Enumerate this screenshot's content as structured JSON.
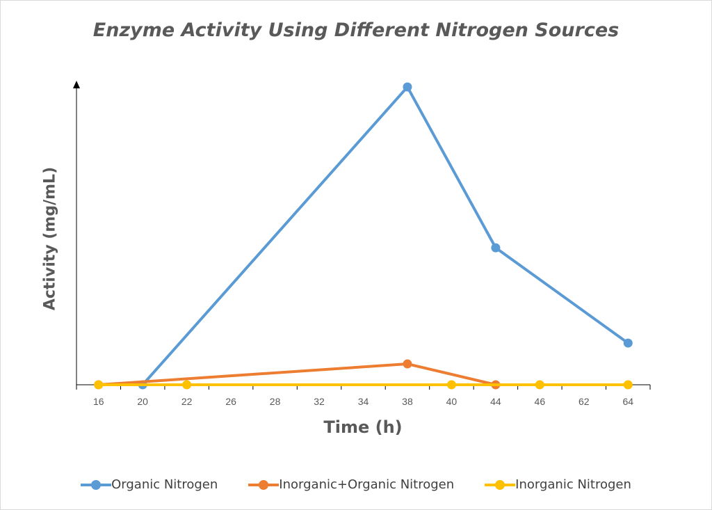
{
  "chart_data": {
    "type": "line",
    "title": "Enzyme Activity Using Different Nitrogen Sources",
    "xlabel": "Time (h)",
    "ylabel": "Activity  (mg/mL)",
    "categories": [
      "16",
      "20",
      "22",
      "26",
      "28",
      "32",
      "34",
      "38",
      "40",
      "44",
      "46",
      "62",
      "64"
    ],
    "ylim": [
      0,
      100
    ],
    "y_ticks_shown": false,
    "grid": false,
    "legend_position": "bottom",
    "series": [
      {
        "name": "Organic Nitrogen",
        "color": "#5b9bd5",
        "points": [
          {
            "x": "20",
            "y": 0
          },
          {
            "x": "38",
            "y": 100
          },
          {
            "x": "44",
            "y": 46
          },
          {
            "x": "64",
            "y": 14
          }
        ]
      },
      {
        "name": "Inorganic+Organic Nitrogen",
        "color": "#ed7d31",
        "points": [
          {
            "x": "16",
            "y": 0
          },
          {
            "x": "38",
            "y": 7
          },
          {
            "x": "44",
            "y": 0
          }
        ]
      },
      {
        "name": "Inorganic Nitrogen",
        "color": "#ffc000",
        "points": [
          {
            "x": "16",
            "y": 0
          },
          {
            "x": "22",
            "y": 0
          },
          {
            "x": "40",
            "y": 0
          },
          {
            "x": "46",
            "y": 0
          },
          {
            "x": "64",
            "y": 0
          }
        ]
      }
    ]
  }
}
